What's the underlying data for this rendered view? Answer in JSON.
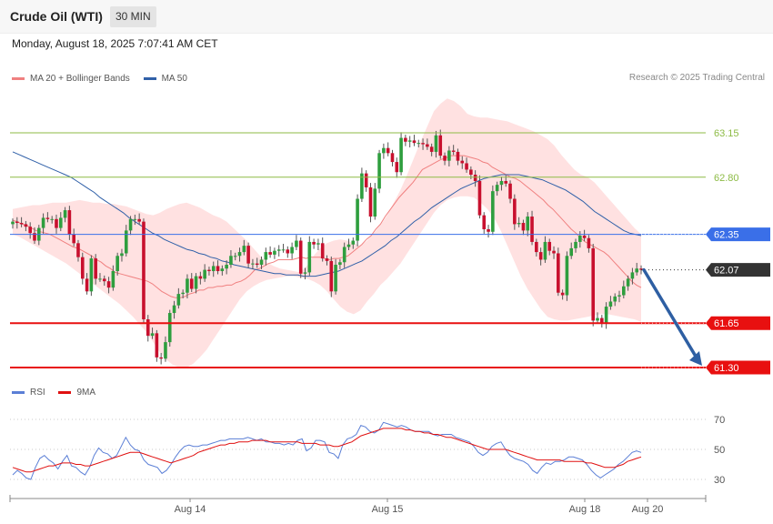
{
  "header": {
    "title": "Crude Oil (WTI)",
    "timeframe": "30 MIN",
    "datetime": "Monday, August 18, 2025 7:07:41 AM CET"
  },
  "legend": {
    "items": [
      {
        "label": "MA 20 + Bollinger Bands",
        "color": "#f08080"
      },
      {
        "label": "MA 50",
        "color": "#3060a8"
      }
    ],
    "credit": "Research © 2025 Trading Central"
  },
  "rsi_legend": {
    "items": [
      {
        "label": "RSI",
        "color": "#5b7fd6"
      },
      {
        "label": "9MA",
        "color": "#e01010"
      }
    ]
  },
  "chart_data": [
    {
      "type": "candlestick",
      "ylim": [
        61.2,
        63.5
      ],
      "x_ticks": [
        "Aug 14",
        "Aug 15",
        "Aug 18",
        "Aug 20"
      ],
      "levels": [
        {
          "value": 63.15,
          "label": "63.15",
          "color": "#8dbb45",
          "kind": "thin"
        },
        {
          "value": 62.8,
          "label": "62.80",
          "color": "#8dbb45",
          "kind": "thin"
        },
        {
          "value": 62.35,
          "label": "62.35",
          "color": "#3a6fe8",
          "kind": "tag"
        },
        {
          "value": 62.07,
          "label": "62.07",
          "color": "#333333",
          "kind": "tag"
        },
        {
          "value": 61.65,
          "label": "61.65",
          "color": "#e81010",
          "kind": "tag"
        },
        {
          "value": 61.3,
          "label": "61.30",
          "color": "#e81010",
          "kind": "tag"
        }
      ],
      "projection": {
        "from": 62.07,
        "to": 61.3,
        "color": "#2e5fa3"
      },
      "prices": [
        62.45,
        62.44,
        62.43,
        62.41,
        62.36,
        62.3,
        62.4,
        62.48,
        62.47,
        62.47,
        62.4,
        62.48,
        62.54,
        62.35,
        62.28,
        62.17,
        62.0,
        61.9,
        62.16,
        62.0,
        62.0,
        61.98,
        61.93,
        62.06,
        62.18,
        62.2,
        62.38,
        62.47,
        62.47,
        62.45,
        61.68,
        61.55,
        61.57,
        61.38,
        61.37,
        61.5,
        61.73,
        61.79,
        61.88,
        61.89,
        62.0,
        61.92,
        62.02,
        62.0,
        62.07,
        62.06,
        62.1,
        62.06,
        62.08,
        62.11,
        62.18,
        62.18,
        62.21,
        62.26,
        62.12,
        62.12,
        62.11,
        62.15,
        62.21,
        62.19,
        62.22,
        62.23,
        62.23,
        62.2,
        62.25,
        62.3,
        62.04,
        62.05,
        62.29,
        62.27,
        62.28,
        62.16,
        62.14,
        61.9,
        62.11,
        62.13,
        62.25,
        62.27,
        62.3,
        62.63,
        62.83,
        62.72,
        62.49,
        62.71,
        62.99,
        63.03,
        62.99,
        62.92,
        62.84,
        63.11,
        63.08,
        63.09,
        63.07,
        63.07,
        63.06,
        63.04,
        63.0,
        63.13,
        62.97,
        62.93,
        63.01,
        63.0,
        62.93,
        62.91,
        62.86,
        62.82,
        62.77,
        62.5,
        62.39,
        62.37,
        62.69,
        62.74,
        62.77,
        62.75,
        62.63,
        62.43,
        62.44,
        62.38,
        62.49,
        62.29,
        62.21,
        62.15,
        62.29,
        62.22,
        62.2,
        61.89,
        61.87,
        62.18,
        62.24,
        62.29,
        62.34,
        62.32,
        62.24,
        61.67,
        61.69,
        61.65,
        61.78,
        61.82,
        61.86,
        61.87,
        61.94,
        62.0,
        62.05,
        62.08,
        62.07
      ],
      "ma20": [
        62.46,
        62.45,
        62.43,
        62.42,
        62.4,
        62.38,
        62.37,
        62.36,
        62.35,
        62.33,
        62.31,
        62.29,
        62.27,
        62.25,
        62.24,
        62.22,
        62.2,
        62.18,
        62.15,
        62.13,
        62.1,
        62.08,
        62.05,
        62.04,
        62.03,
        62.02,
        62.01,
        62.0,
        61.99,
        61.98,
        61.96,
        61.93,
        61.9,
        61.88,
        61.86,
        61.85,
        61.85,
        61.86,
        61.88,
        61.89,
        61.91,
        61.91,
        61.93,
        61.93,
        61.94,
        61.94,
        61.95,
        61.95,
        61.97,
        61.98,
        62.0,
        62.03,
        62.07,
        62.08,
        62.1,
        62.12,
        62.13,
        62.15,
        62.15,
        62.15,
        62.15,
        62.16,
        62.17,
        62.16,
        62.17,
        62.17,
        62.17,
        62.16,
        62.15,
        62.16,
        62.16,
        62.17,
        62.18,
        62.21,
        62.24,
        62.27,
        62.31,
        62.34,
        62.39,
        62.43,
        62.49,
        62.54,
        62.59,
        62.64,
        62.68,
        62.72,
        62.76,
        62.81,
        62.86,
        62.88,
        62.9,
        62.92,
        62.94,
        62.95,
        62.97,
        62.97,
        62.97,
        62.97,
        62.96,
        62.95,
        62.94,
        62.92,
        62.91,
        62.88,
        62.86,
        62.84,
        62.82,
        62.8,
        62.79,
        62.77,
        62.74,
        62.71,
        62.68,
        62.65,
        62.62,
        62.58,
        62.55,
        62.51,
        62.47,
        62.43,
        62.39,
        62.36,
        62.32,
        62.29,
        62.27,
        62.25,
        62.23,
        62.21,
        62.18,
        62.14,
        62.1,
        62.06,
        62.02,
        61.98,
        61.95,
        61.93
      ],
      "ma50": [
        63.0,
        62.98,
        62.96,
        62.94,
        62.92,
        62.9,
        62.88,
        62.86,
        62.84,
        62.82,
        62.8,
        62.77,
        62.74,
        62.71,
        62.68,
        62.64,
        62.61,
        62.58,
        62.55,
        62.52,
        62.48,
        62.45,
        62.42,
        62.39,
        62.36,
        62.34,
        62.31,
        62.29,
        62.27,
        62.25,
        62.23,
        62.22,
        62.2,
        62.19,
        62.17,
        62.16,
        62.14,
        62.13,
        62.11,
        62.1,
        62.09,
        62.08,
        62.07,
        62.06,
        62.05,
        62.04,
        62.04,
        62.03,
        62.03,
        62.03,
        62.02,
        62.02,
        62.02,
        62.03,
        62.04,
        62.05,
        62.06,
        62.08,
        62.1,
        62.12,
        62.14,
        62.17,
        62.2,
        62.23,
        62.26,
        62.3,
        62.33,
        62.37,
        62.41,
        62.45,
        62.48,
        62.52,
        62.56,
        62.59,
        62.62,
        62.65,
        62.68,
        62.71,
        62.73,
        62.75,
        62.77,
        62.79,
        62.8,
        62.81,
        62.82,
        62.82,
        62.82,
        62.82,
        62.81,
        62.8,
        62.79,
        62.78,
        62.76,
        62.74,
        62.72,
        62.7,
        62.67,
        62.64,
        62.61,
        62.57,
        62.53,
        62.5,
        62.47,
        62.44,
        62.41,
        62.38,
        62.36,
        62.35,
        62.34
      ],
      "bb_upper": [
        62.55,
        62.56,
        62.57,
        62.58,
        62.58,
        62.59,
        62.6,
        62.6,
        62.6,
        62.61,
        62.62,
        62.61,
        62.6,
        62.6,
        62.59,
        62.59,
        62.58,
        62.57,
        62.55,
        62.53,
        62.51,
        62.5,
        62.52,
        62.55,
        62.57,
        62.59,
        62.6,
        62.58,
        62.56,
        62.53,
        62.5,
        62.48,
        62.45,
        62.4,
        62.35,
        62.3,
        62.24,
        62.18,
        62.13,
        62.1,
        62.08,
        62.07,
        62.06,
        62.05,
        62.1,
        62.18,
        62.24,
        62.28,
        62.3,
        62.31,
        62.3,
        62.28,
        62.26,
        62.3,
        62.36,
        62.42,
        62.5,
        62.6,
        62.7,
        62.82,
        62.95,
        63.08,
        63.2,
        63.32,
        63.38,
        63.42,
        63.4,
        63.36,
        63.3,
        63.28,
        63.27,
        63.27,
        63.26,
        63.25,
        63.24,
        63.22,
        63.2,
        63.18,
        63.16,
        63.13,
        63.1,
        63.05,
        62.98,
        62.92,
        62.86,
        62.82,
        62.8,
        62.76,
        62.7,
        62.64,
        62.58,
        62.52,
        62.46,
        62.4,
        62.35
      ],
      "bb_lower": [
        62.35,
        62.33,
        62.3,
        62.27,
        62.24,
        62.21,
        62.18,
        62.15,
        62.12,
        62.08,
        62.04,
        62.0,
        61.96,
        61.92,
        61.88,
        61.84,
        61.8,
        61.75,
        61.7,
        61.64,
        61.58,
        61.5,
        61.42,
        61.36,
        61.32,
        61.3,
        61.3,
        61.33,
        61.38,
        61.44,
        61.52,
        61.6,
        61.68,
        61.76,
        61.84,
        61.9,
        61.94,
        61.97,
        61.99,
        62.0,
        62.01,
        62.02,
        62.02,
        62.01,
        62.0,
        61.98,
        61.95,
        61.9,
        61.84,
        61.78,
        61.74,
        61.72,
        61.75,
        61.82,
        61.88,
        61.95,
        62.0,
        62.06,
        62.12,
        62.2,
        62.28,
        62.36,
        62.44,
        62.52,
        62.58,
        62.62,
        62.64,
        62.65,
        62.65,
        62.64,
        62.6,
        62.55,
        62.48,
        62.38,
        62.26,
        62.14,
        62.02,
        61.92,
        61.84,
        61.76,
        61.7,
        61.68,
        61.67,
        61.67,
        61.68,
        61.69,
        61.7,
        61.71,
        61.72,
        61.72,
        61.71,
        61.7,
        61.69,
        61.68,
        61.66
      ]
    },
    {
      "type": "line",
      "ylim": [
        20,
        80
      ],
      "y_ticks": [
        30,
        50,
        70
      ],
      "series": [
        {
          "name": "RSI",
          "color": "#5b7fd6",
          "values": [
            33,
            36,
            34,
            31,
            30,
            38,
            44,
            46,
            43,
            41,
            37,
            42,
            46,
            39,
            38,
            35,
            33,
            38,
            46,
            51,
            48,
            47,
            44,
            46,
            52,
            58,
            53,
            50,
            49,
            43,
            40,
            39,
            38,
            34,
            36,
            40,
            45,
            49,
            52,
            53,
            52,
            52,
            53,
            53,
            54,
            55,
            56,
            56,
            57,
            57,
            57,
            57,
            58,
            57,
            56,
            57,
            55,
            55,
            54,
            54,
            53,
            54,
            53,
            56,
            57,
            49,
            51,
            56,
            56,
            55,
            48,
            47,
            44,
            53,
            57,
            58,
            60,
            66,
            65,
            62,
            61,
            63,
            68,
            67,
            66,
            65,
            66,
            65,
            63,
            62,
            62,
            62,
            62,
            60,
            59,
            60,
            60,
            60,
            58,
            57,
            56,
            55,
            52,
            48,
            46,
            48,
            52,
            54,
            55,
            50,
            46,
            44,
            43,
            42,
            40,
            36,
            34,
            38,
            41,
            40,
            42,
            42,
            43,
            45,
            45,
            44,
            43,
            40,
            36,
            33,
            31,
            33,
            35,
            37,
            40,
            42,
            45,
            48,
            49,
            48
          ]
        },
        {
          "name": "9MA",
          "color": "#e01010",
          "values": [
            38,
            37,
            36,
            35,
            35,
            36,
            37,
            38,
            39,
            39,
            40,
            41,
            41,
            41,
            40,
            40,
            39,
            39,
            40,
            41,
            42,
            43,
            44,
            45,
            46,
            47,
            48,
            48,
            48,
            47,
            46,
            45,
            44,
            43,
            42,
            41,
            42,
            43,
            44,
            45,
            46,
            48,
            49,
            50,
            51,
            52,
            53,
            53,
            54,
            54,
            55,
            55,
            55,
            56,
            56,
            56,
            56,
            55,
            55,
            55,
            55,
            55,
            55,
            55,
            54,
            54,
            54,
            54,
            53,
            53,
            53,
            52,
            52,
            53,
            54,
            55,
            57,
            59,
            60,
            61,
            62,
            63,
            64,
            64,
            64,
            64,
            64,
            63,
            63,
            62,
            62,
            61,
            61,
            60,
            60,
            59,
            58,
            58,
            57,
            56,
            55,
            54,
            53,
            52,
            51,
            50,
            50,
            50,
            50,
            50,
            49,
            48,
            47,
            46,
            45,
            44,
            43,
            43,
            43,
            43,
            43,
            43,
            42,
            42,
            42,
            42,
            42,
            41,
            41,
            40,
            39,
            38,
            38,
            38,
            39,
            40,
            42,
            43,
            44,
            45
          ]
        }
      ]
    }
  ]
}
